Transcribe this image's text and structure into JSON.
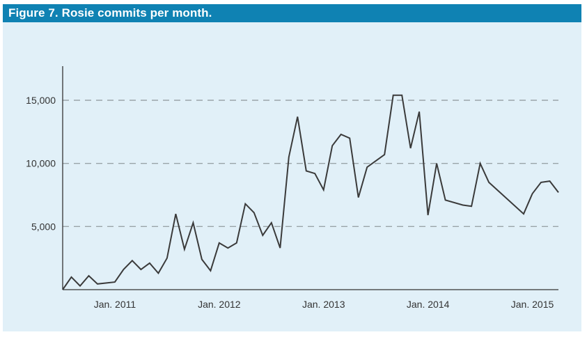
{
  "figure": {
    "title": "Figure 7. Rosie commits per month."
  },
  "colors": {
    "header_background": "#0f82b3",
    "header_text": "#ffffff",
    "plot_background": "#e1f0f8",
    "line": "#3a3a3a",
    "gridline": "#9aa4a9"
  },
  "chart_data": {
    "type": "line",
    "title": "Figure 7. Rosie commits per month.",
    "xlabel": "",
    "ylabel": "",
    "x_ticks": [
      "Jan. 2011",
      "Jan. 2012",
      "Jan. 2013",
      "Jan. 2014",
      "Jan. 2015"
    ],
    "y_ticks": [
      "5,000",
      "10,000",
      "15,000"
    ],
    "y_tick_values": [
      5000,
      10000,
      15000
    ],
    "ylim": [
      0,
      17500
    ],
    "xlim": [
      "2010-07",
      "2015-03"
    ],
    "grid": "horizontal dashed at 5,000, 10,000, 15,000",
    "legend": "none",
    "series": [
      {
        "x": [
          "2010-07",
          "2010-08",
          "2010-09",
          "2010-10",
          "2010-11",
          "2011-01",
          "2011-02",
          "2011-03",
          "2011-04",
          "2011-05",
          "2011-06",
          "2011-07",
          "2011-08",
          "2011-09",
          "2011-10",
          "2011-11",
          "2011-12",
          "2012-01",
          "2012-02",
          "2012-03",
          "2012-04",
          "2012-05",
          "2012-06",
          "2012-07",
          "2012-08",
          "2012-09",
          "2012-10",
          "2012-11",
          "2012-12",
          "2013-01",
          "2013-02",
          "2013-03",
          "2013-04",
          "2013-05",
          "2013-06",
          "2013-08",
          "2013-09",
          "2013-10",
          "2013-11",
          "2013-12",
          "2014-01",
          "2014-02",
          "2014-03",
          "2014-05",
          "2014-06",
          "2014-07",
          "2014-08",
          "2014-12",
          "2015-01",
          "2015-02",
          "2015-03",
          "2015-04"
        ],
        "values": [
          0,
          1000,
          300,
          1100,
          450,
          600,
          1600,
          2300,
          1600,
          2100,
          1300,
          2500,
          6000,
          3200,
          5300,
          2400,
          1500,
          3700,
          3300,
          3700,
          6800,
          6100,
          4300,
          5300,
          3300,
          10500,
          13700,
          9400,
          9200,
          7900,
          11400,
          12300,
          12000,
          7300,
          9700,
          10700,
          15400,
          15400,
          11200,
          14100,
          5900,
          10000,
          7100,
          6700,
          6600,
          10000,
          8500,
          6000,
          7600,
          8500,
          8600,
          7700
        ]
      }
    ]
  }
}
